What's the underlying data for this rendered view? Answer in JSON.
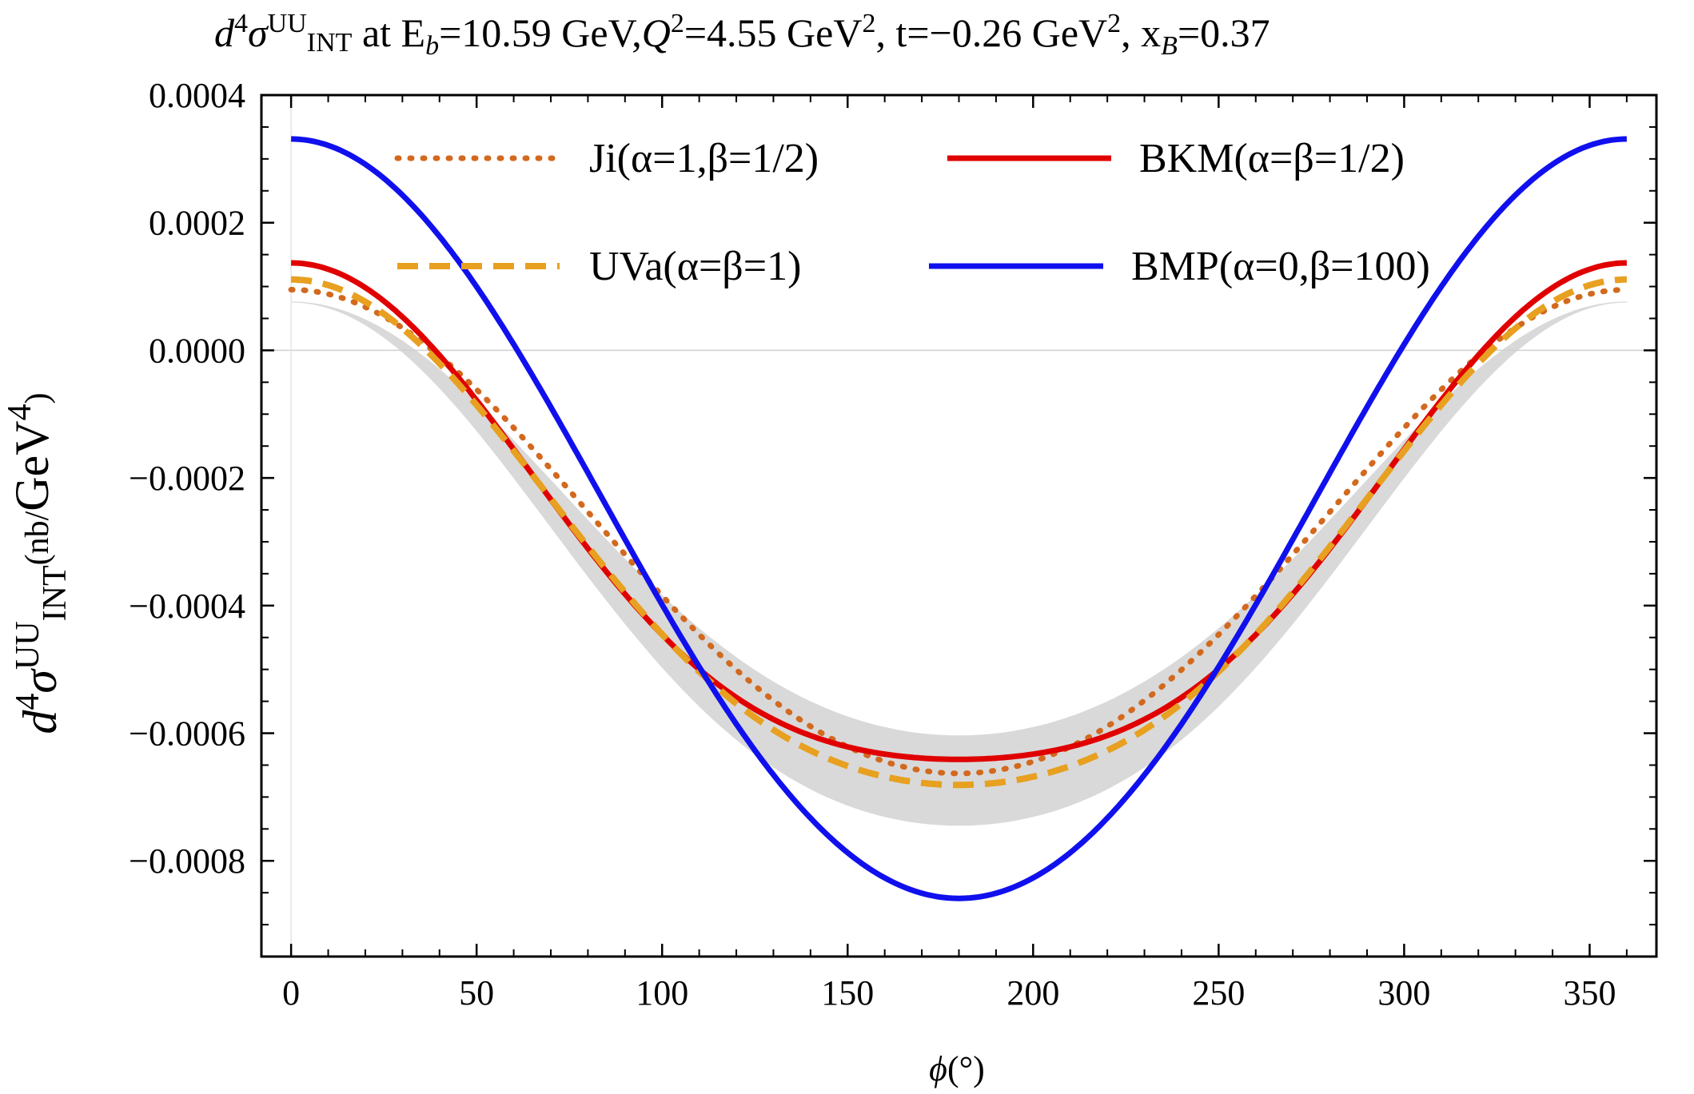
{
  "chart_data": {
    "type": "line",
    "title": {
      "prefix": "d",
      "prefix_sup": "4",
      "sigma": "σ",
      "sigma_sup": "UU",
      "sigma_sub": "INT",
      "rest": " at E",
      "eb_sub": "b",
      "eb_val": "=10.59 GeV,",
      "q": "Q",
      "q_sup": "2",
      "q_val": "=4.55 GeV",
      "q_unit_sup": "2",
      "t_part": ", t=−0.26 GeV",
      "t_unit_sup": "2",
      "x_part": ", x",
      "x_sub": "B",
      "x_val": "=0.37"
    },
    "xlabel": {
      "var": "ϕ",
      "unit": "(°)"
    },
    "ylabel": {
      "prefix": "d",
      "prefix_sup": "4",
      "sigma": "σ",
      "sigma_sup": "UU",
      "sigma_sub": "INT",
      "unit": "(nb/",
      "unit2": "GeV",
      "unit_sup": "4",
      "unit_close": ")"
    },
    "xlim": [
      -8,
      368
    ],
    "ylim": [
      -0.00095,
      0.0004
    ],
    "x_ticks": [
      0,
      50,
      100,
      150,
      200,
      250,
      300,
      350
    ],
    "x_tick_labels": [
      "0",
      "50",
      "100",
      "150",
      "200",
      "250",
      "300",
      "350"
    ],
    "y_ticks": [
      0.0004,
      0.0002,
      0.0,
      -0.0002,
      -0.0004,
      -0.0006,
      -0.0008
    ],
    "y_tick_labels": [
      "0.0004",
      "0.0002",
      "0.0000",
      "−0.0002",
      "−0.0004",
      "−0.0006",
      "−0.0008"
    ],
    "phi_model": "A + B cos(phi) + C cos(2 phi), phi in degrees 0..360",
    "band": {
      "color": "#d9d9d9",
      "upper": {
        "A": -0.000295,
        "B": 0.00034,
        "C": 3.15e-05
      },
      "lower": {
        "A": -0.000382,
        "B": 0.00041,
        "C": 4.7e-05
      }
    },
    "series": [
      {
        "name": "Ji(α=1,β=1/2)",
        "color": "#d2691e",
        "style": "dotted",
        "A": -0.000302,
        "B": 0.000379,
        "C": 1.8e-05
      },
      {
        "name": "BKM(α=β=1/2)",
        "color": "#e00000",
        "style": "solid",
        "A": -0.000317,
        "B": 0.000389,
        "C": 6.5e-05
      },
      {
        "name": "UVa(α=β=1)",
        "color": "#e8a020",
        "style": "dashed",
        "A": -0.000332,
        "B": 0.000396,
        "C": 4.7e-05
      },
      {
        "name": "BMP(α=0,β=100)",
        "color": "#1010ee",
        "style": "solid",
        "A": -0.00028,
        "B": 0.000595,
        "C": 1.62e-05
      }
    ],
    "zero_line": true,
    "legend_placement": "top-center, two columns"
  }
}
